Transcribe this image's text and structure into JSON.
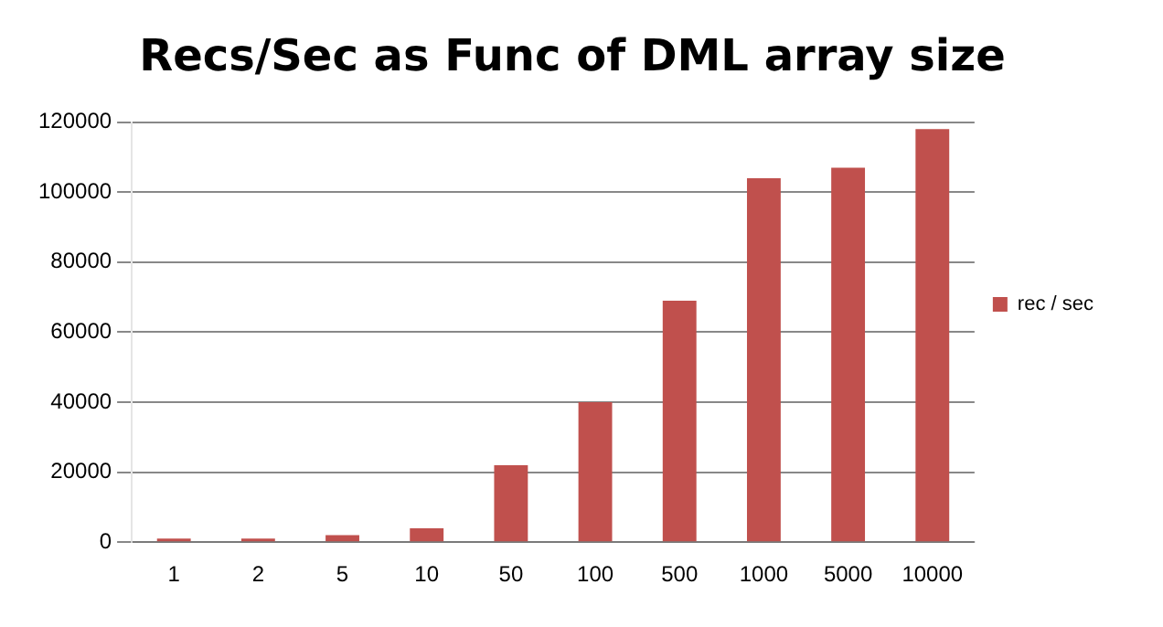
{
  "chart_data": {
    "type": "bar",
    "title": "Recs/Sec as Func of DML array size",
    "categories": [
      "1",
      "2",
      "5",
      "10",
      "50",
      "100",
      "500",
      "1000",
      "5000",
      "10000"
    ],
    "series": [
      {
        "name": "rec / sec",
        "color": "#c0504d",
        "values": [
          1000,
          1000,
          2000,
          4000,
          22000,
          40000,
          69000,
          104000,
          107000,
          118000
        ]
      }
    ],
    "ylim": [
      0,
      120000
    ],
    "yticks": [
      0,
      20000,
      40000,
      60000,
      80000,
      100000,
      120000
    ],
    "grid": "y",
    "legend": "right"
  }
}
